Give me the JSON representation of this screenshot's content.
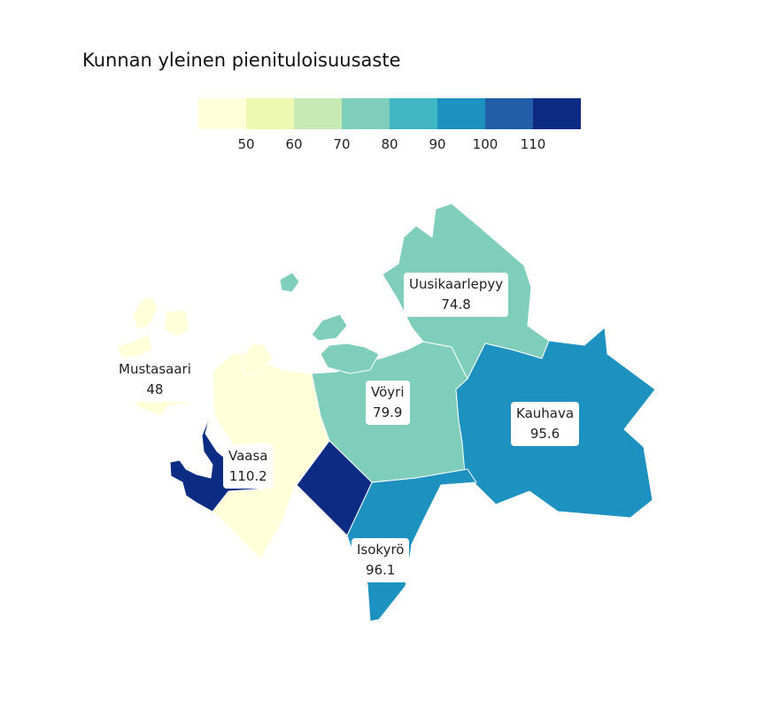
{
  "title": "Kunnan yleinen pienituloisuusaste",
  "legend": {
    "colors": [
      "#ffffd9",
      "#edf8b1",
      "#c7e9b4",
      "#7fcdbb",
      "#41b6c4",
      "#1d91c0",
      "#225ea8",
      "#0c2c84"
    ],
    "ticks": [
      "50",
      "60",
      "70",
      "80",
      "90",
      "100",
      "110"
    ]
  },
  "regions": [
    {
      "name": "Mustasaari",
      "value": "48",
      "color": "#ffffd9"
    },
    {
      "name": "Vaasa",
      "value": "110.2",
      "color": "#0c2c84"
    },
    {
      "name": "Vöyri",
      "value": "79.9",
      "color": "#7fcdbb"
    },
    {
      "name": "Uusikaarlepyy",
      "value": "74.8",
      "color": "#7fcdbb"
    },
    {
      "name": "Kauhava",
      "value": "95.6",
      "color": "#1d91c0"
    },
    {
      "name": "Isokyrö",
      "value": "96.1",
      "color": "#1d91c0"
    }
  ]
}
